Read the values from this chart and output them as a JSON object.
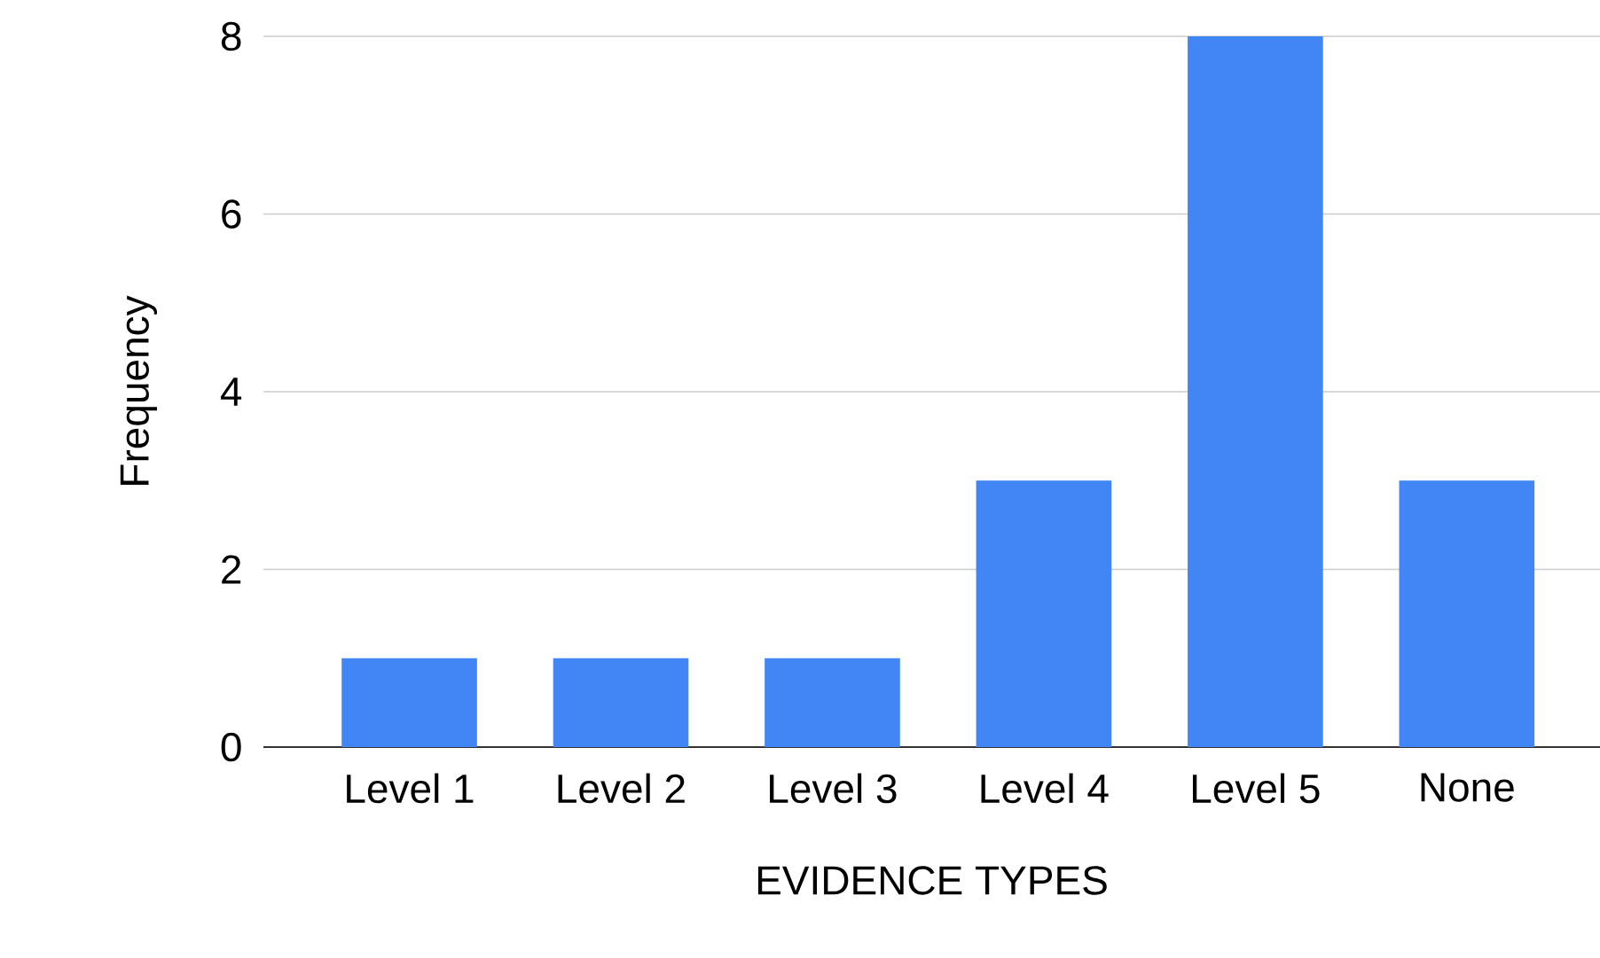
{
  "chart_data": {
    "type": "bar",
    "xlabel": "EVIDENCE TYPES",
    "ylabel": "Frequency",
    "categories": [
      "Level 1",
      "Level 2",
      "Level 3",
      "Level 4",
      "Level 5",
      "None"
    ],
    "values": [
      1,
      1,
      1,
      3,
      8,
      3
    ],
    "color": "#4285f4",
    "ylim": [
      0,
      8
    ],
    "yticks": [
      0,
      2,
      4,
      6,
      8
    ],
    "grid": "y"
  }
}
